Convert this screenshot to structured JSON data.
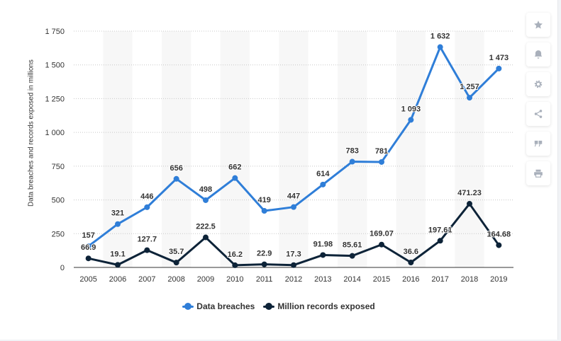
{
  "chart_data": {
    "type": "line",
    "title": "",
    "xlabel": "",
    "ylabel": "Data breaches and records exposed in millions",
    "categories": [
      "2005",
      "2006",
      "2007",
      "2008",
      "2009",
      "2010",
      "2011",
      "2012",
      "2013",
      "2014",
      "2015",
      "2016",
      "2017",
      "2018",
      "2019"
    ],
    "yticks": [
      0,
      250,
      500,
      750,
      1000,
      1250,
      1500,
      1750
    ],
    "ytick_labels": [
      "0",
      "250",
      "500",
      "750",
      "1 000",
      "1 250",
      "1 500",
      "1 750"
    ],
    "ylim": [
      0,
      1750
    ],
    "grid": "horizontal dotted",
    "legend_position": "bottom",
    "series": [
      {
        "name": "Data breaches",
        "color": "#2f7ed8",
        "values": [
          157,
          321,
          446,
          656,
          498,
          662,
          419,
          447,
          614,
          783,
          781,
          1093,
          1632,
          1257,
          1473
        ],
        "labels": [
          "157",
          "321",
          "446",
          "656",
          "498",
          "662",
          "419",
          "447",
          "614",
          "783",
          "781",
          "1 093",
          "1 632",
          "1 257",
          "1 473"
        ]
      },
      {
        "name": "Million records exposed",
        "color": "#0d2338",
        "values": [
          66.9,
          19.1,
          127.7,
          35.7,
          222.5,
          16.2,
          22.9,
          17.3,
          91.98,
          85.61,
          169.07,
          36.6,
          197.61,
          471.23,
          164.68
        ],
        "labels": [
          "66.9",
          "19.1",
          "127.7",
          "35.7",
          "222.5",
          "16.2",
          "22.9",
          "17.3",
          "91.98",
          "85.61",
          "169.07",
          "36.6",
          "197.61",
          "471.23",
          "164.68"
        ]
      }
    ]
  },
  "toolbar": {
    "icons": [
      "star-icon",
      "bell-icon",
      "gear-icon",
      "share-icon",
      "quote-icon",
      "print-icon"
    ]
  }
}
